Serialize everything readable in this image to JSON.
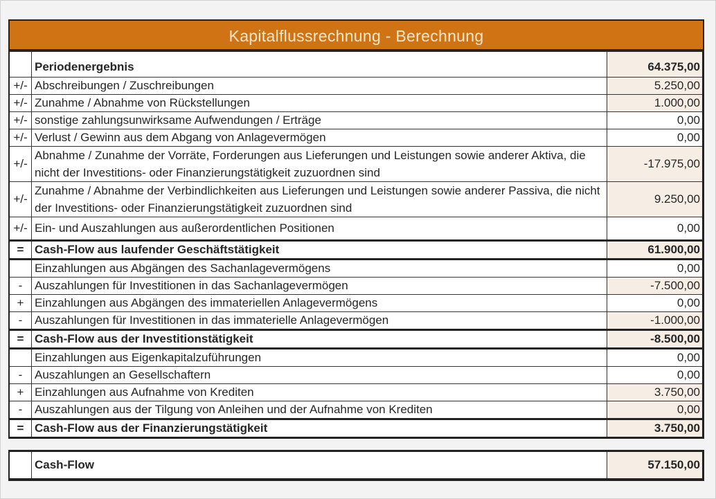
{
  "title": "Kapitalflussrechnung - Berechnung",
  "colors": {
    "header_bg": "#cf7314",
    "header_text": "#fbe6c8",
    "value_tint": "#f6eee4"
  },
  "rows": [
    {
      "sign": "",
      "label": "Periodenergebnis",
      "value": "64.375,00",
      "bold": true
    },
    {
      "sign": "+/-",
      "label": "Abschreibungen / Zuschreibungen",
      "value": "5.250,00"
    },
    {
      "sign": "+/-",
      "label": "Zunahme / Abnahme von Rückstellungen",
      "value": "1.000,00"
    },
    {
      "sign": "+/-",
      "label": "sonstige zahlungsunwirksame Aufwendungen / Erträge",
      "value": "0,00"
    },
    {
      "sign": "+/-",
      "label": "Verlust / Gewinn aus dem Abgang von Anlagevermögen",
      "value": "0,00"
    },
    {
      "sign": "+/-",
      "label": "Abnahme / Zunahme der Vorräte, Forderungen aus Lieferungen und Leistungen sowie anderer Aktiva, die nicht der Investitions- oder Finanzierungstätigkeit zuzuordnen sind",
      "value": "-17.975,00"
    },
    {
      "sign": "+/-",
      "label": "Zunahme / Abnahme der Verbindlichkeiten aus Lieferungen und Leistungen sowie anderer Passiva, die nicht der Investitions- oder Finanzierungstätigkeit zuzuordnen sind",
      "value": "9.250,00"
    },
    {
      "sign": "+/-",
      "label": "Ein- und Auszahlungen aus außerordentlichen Positionen",
      "value": "0,00"
    },
    {
      "sign": "=",
      "label": "Cash-Flow aus laufender Geschäftstätigkeit",
      "value": "61.900,00",
      "bold": true
    },
    {
      "sign": "",
      "label": "Einzahlungen aus Abgängen des Sachanlagevermögens",
      "value": "0,00"
    },
    {
      "sign": "-",
      "label": "Auszahlungen für Investitionen in das Sachanlagevermögen",
      "value": "-7.500,00"
    },
    {
      "sign": "+",
      "label": "Einzahlungen aus Abgängen des immateriellen Anlagevermögens",
      "value": "0,00"
    },
    {
      "sign": "-",
      "label": "Auszahlungen für Investitionen in das immaterielle Anlagevermögen",
      "value": "-1.000,00"
    },
    {
      "sign": "=",
      "label": "Cash-Flow aus der Investitionstätigkeit",
      "value": "-8.500,00",
      "bold": true
    },
    {
      "sign": "",
      "label": "Einzahlungen aus Eigenkapitalzuführungen",
      "value": "0,00"
    },
    {
      "sign": "-",
      "label": "Auszahlungen an Gesellschaftern",
      "value": "0,00"
    },
    {
      "sign": "+",
      "label": "Einzahlungen aus Aufnahme von Krediten",
      "value": "3.750,00"
    },
    {
      "sign": "-",
      "label": "Auszahlungen aus der Tilgung von Anleihen und der Aufnahme von Krediten",
      "value": "0,00"
    },
    {
      "sign": "=",
      "label": "Cash-Flow aus der Finanzierungstätigkeit",
      "value": "3.750,00",
      "bold": true
    }
  ],
  "total": {
    "sign": "",
    "label": "Cash-Flow",
    "value": "57.150,00"
  }
}
